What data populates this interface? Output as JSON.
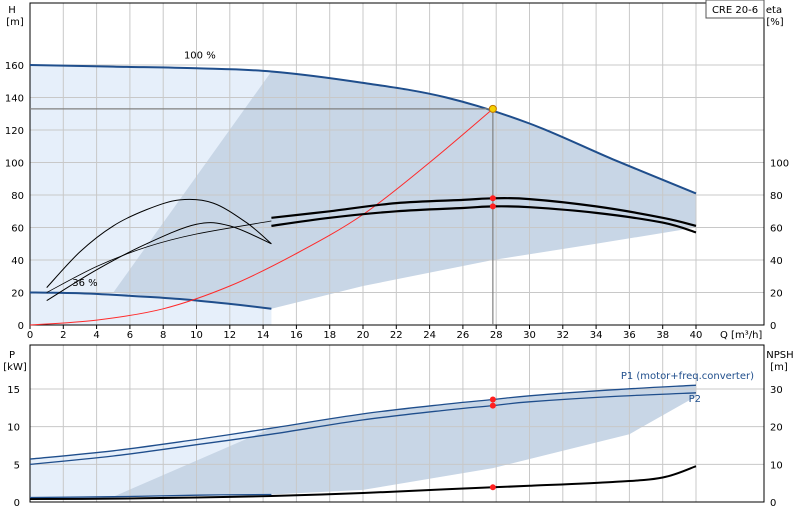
{
  "chart_data": [
    {
      "type": "line",
      "title": "CRE 20-6",
      "xlabel": "Q [m³/h]",
      "x_ticks": [
        0,
        2,
        4,
        6,
        8,
        10,
        12,
        14,
        16,
        18,
        20,
        22,
        24,
        26,
        28,
        30,
        32,
        34,
        36,
        38,
        40
      ],
      "xlim": [
        0,
        44
      ],
      "y_left": {
        "label_top": "H",
        "label_unit": "[m]",
        "ylim": [
          0,
          180
        ],
        "ticks": [
          0,
          20,
          40,
          60,
          80,
          100,
          120,
          140,
          160
        ]
      },
      "y_right": {
        "label_top": "eta",
        "label_unit": "[%]",
        "ylim": [
          0,
          180
        ],
        "ticks": [
          0,
          20,
          40,
          60,
          80,
          100
        ]
      },
      "grid": true,
      "annotations": [
        "100 %",
        "36 %"
      ],
      "duty_point": {
        "Q": 27.8,
        "H": 133
      },
      "series": [
        {
          "role": "head-max",
          "color": "#1f4e8c",
          "x": [
            0,
            5,
            10,
            14.5,
            20,
            25,
            30,
            35,
            40
          ],
          "y": [
            160,
            159,
            158,
            156,
            149,
            140,
            124,
            102,
            81
          ]
        },
        {
          "role": "head-min",
          "color": "#1f4e8c",
          "x": [
            0,
            3,
            6,
            9,
            12,
            14.5
          ],
          "y": [
            20,
            19.5,
            18,
            16,
            13,
            10
          ]
        },
        {
          "role": "system-curve",
          "color": "#ff2a2a",
          "x": [
            0,
            4,
            8,
            12,
            16,
            20,
            24,
            27.8
          ],
          "y": [
            0,
            3,
            10,
            24,
            44,
            68,
            100,
            133
          ]
        },
        {
          "role": "eta-total",
          "color": "#000000",
          "x": [
            14.5,
            18,
            22,
            26,
            27.8,
            30,
            34,
            38,
            40
          ],
          "y": [
            66,
            70,
            75,
            77,
            78,
            77.5,
            73,
            66,
            61
          ]
        },
        {
          "role": "eta-pump",
          "color": "#000000",
          "x": [
            14.5,
            18,
            22,
            26,
            27.8,
            30,
            34,
            38,
            40
          ],
          "y": [
            61,
            66,
            70,
            72,
            73,
            72.5,
            69,
            63,
            57
          ]
        },
        {
          "role": "eta-low-speed-1",
          "color": "#000000",
          "x": [
            1,
            3,
            5,
            7,
            9,
            11,
            13,
            14.5
          ],
          "y": [
            23,
            45,
            61,
            71,
            77,
            75,
            63,
            50
          ]
        },
        {
          "role": "eta-low-speed-2",
          "color": "#000000",
          "x": [
            1,
            4,
            7,
            10,
            12,
            14.5
          ],
          "y": [
            15,
            34,
            50,
            62,
            61,
            50
          ]
        }
      ],
      "series_labels": []
    },
    {
      "type": "line",
      "xlabel": "",
      "xlim": [
        0,
        44
      ],
      "y_left": {
        "label_top": "P",
        "label_unit": "[kW]",
        "ylim": [
          0,
          19
        ],
        "ticks": [
          0,
          5,
          10,
          15
        ]
      },
      "y_right": {
        "label_top": "NPSH",
        "label_unit": "[m]",
        "ylim": [
          0,
          38
        ],
        "ticks": [
          0,
          10,
          20,
          30
        ]
      },
      "grid": true,
      "series": [
        {
          "name": "P1 (motor+freq.converter)",
          "color": "#1f4e8c",
          "x": [
            0,
            5,
            10,
            14.5,
            20,
            25,
            27.8,
            30,
            35,
            40
          ],
          "y": [
            5.7,
            6.8,
            8.3,
            9.8,
            11.7,
            13.0,
            13.6,
            14.1,
            14.9,
            15.5
          ]
        },
        {
          "name": "P2",
          "color": "#1f4e8c",
          "x": [
            0,
            5,
            10,
            14.5,
            20,
            25,
            27.8,
            30,
            35,
            40
          ],
          "y": [
            5.0,
            6.1,
            7.6,
            9.0,
            10.9,
            12.2,
            12.8,
            13.3,
            14.0,
            14.5
          ]
        },
        {
          "role": "npsh",
          "color": "#000000",
          "axis": "right",
          "x": [
            0,
            5,
            10,
            14.5,
            20,
            25,
            27.8,
            30,
            35,
            38,
            40
          ],
          "y": [
            0.8,
            0.9,
            1.2,
            1.6,
            2.4,
            3.4,
            3.9,
            4.3,
            5.3,
            6.5,
            9.5
          ]
        },
        {
          "role": "p-low-speed",
          "color": "#1f4e8c",
          "x": [
            0,
            5,
            10,
            14.5
          ],
          "y": [
            0.6,
            0.7,
            0.9,
            1.0
          ]
        }
      ],
      "markers": [
        {
          "x": 27.8,
          "y": 13.6
        },
        {
          "x": 27.8,
          "y": 12.8
        },
        {
          "x": 27.8,
          "y": 3.9,
          "axis": "right"
        }
      ]
    }
  ]
}
